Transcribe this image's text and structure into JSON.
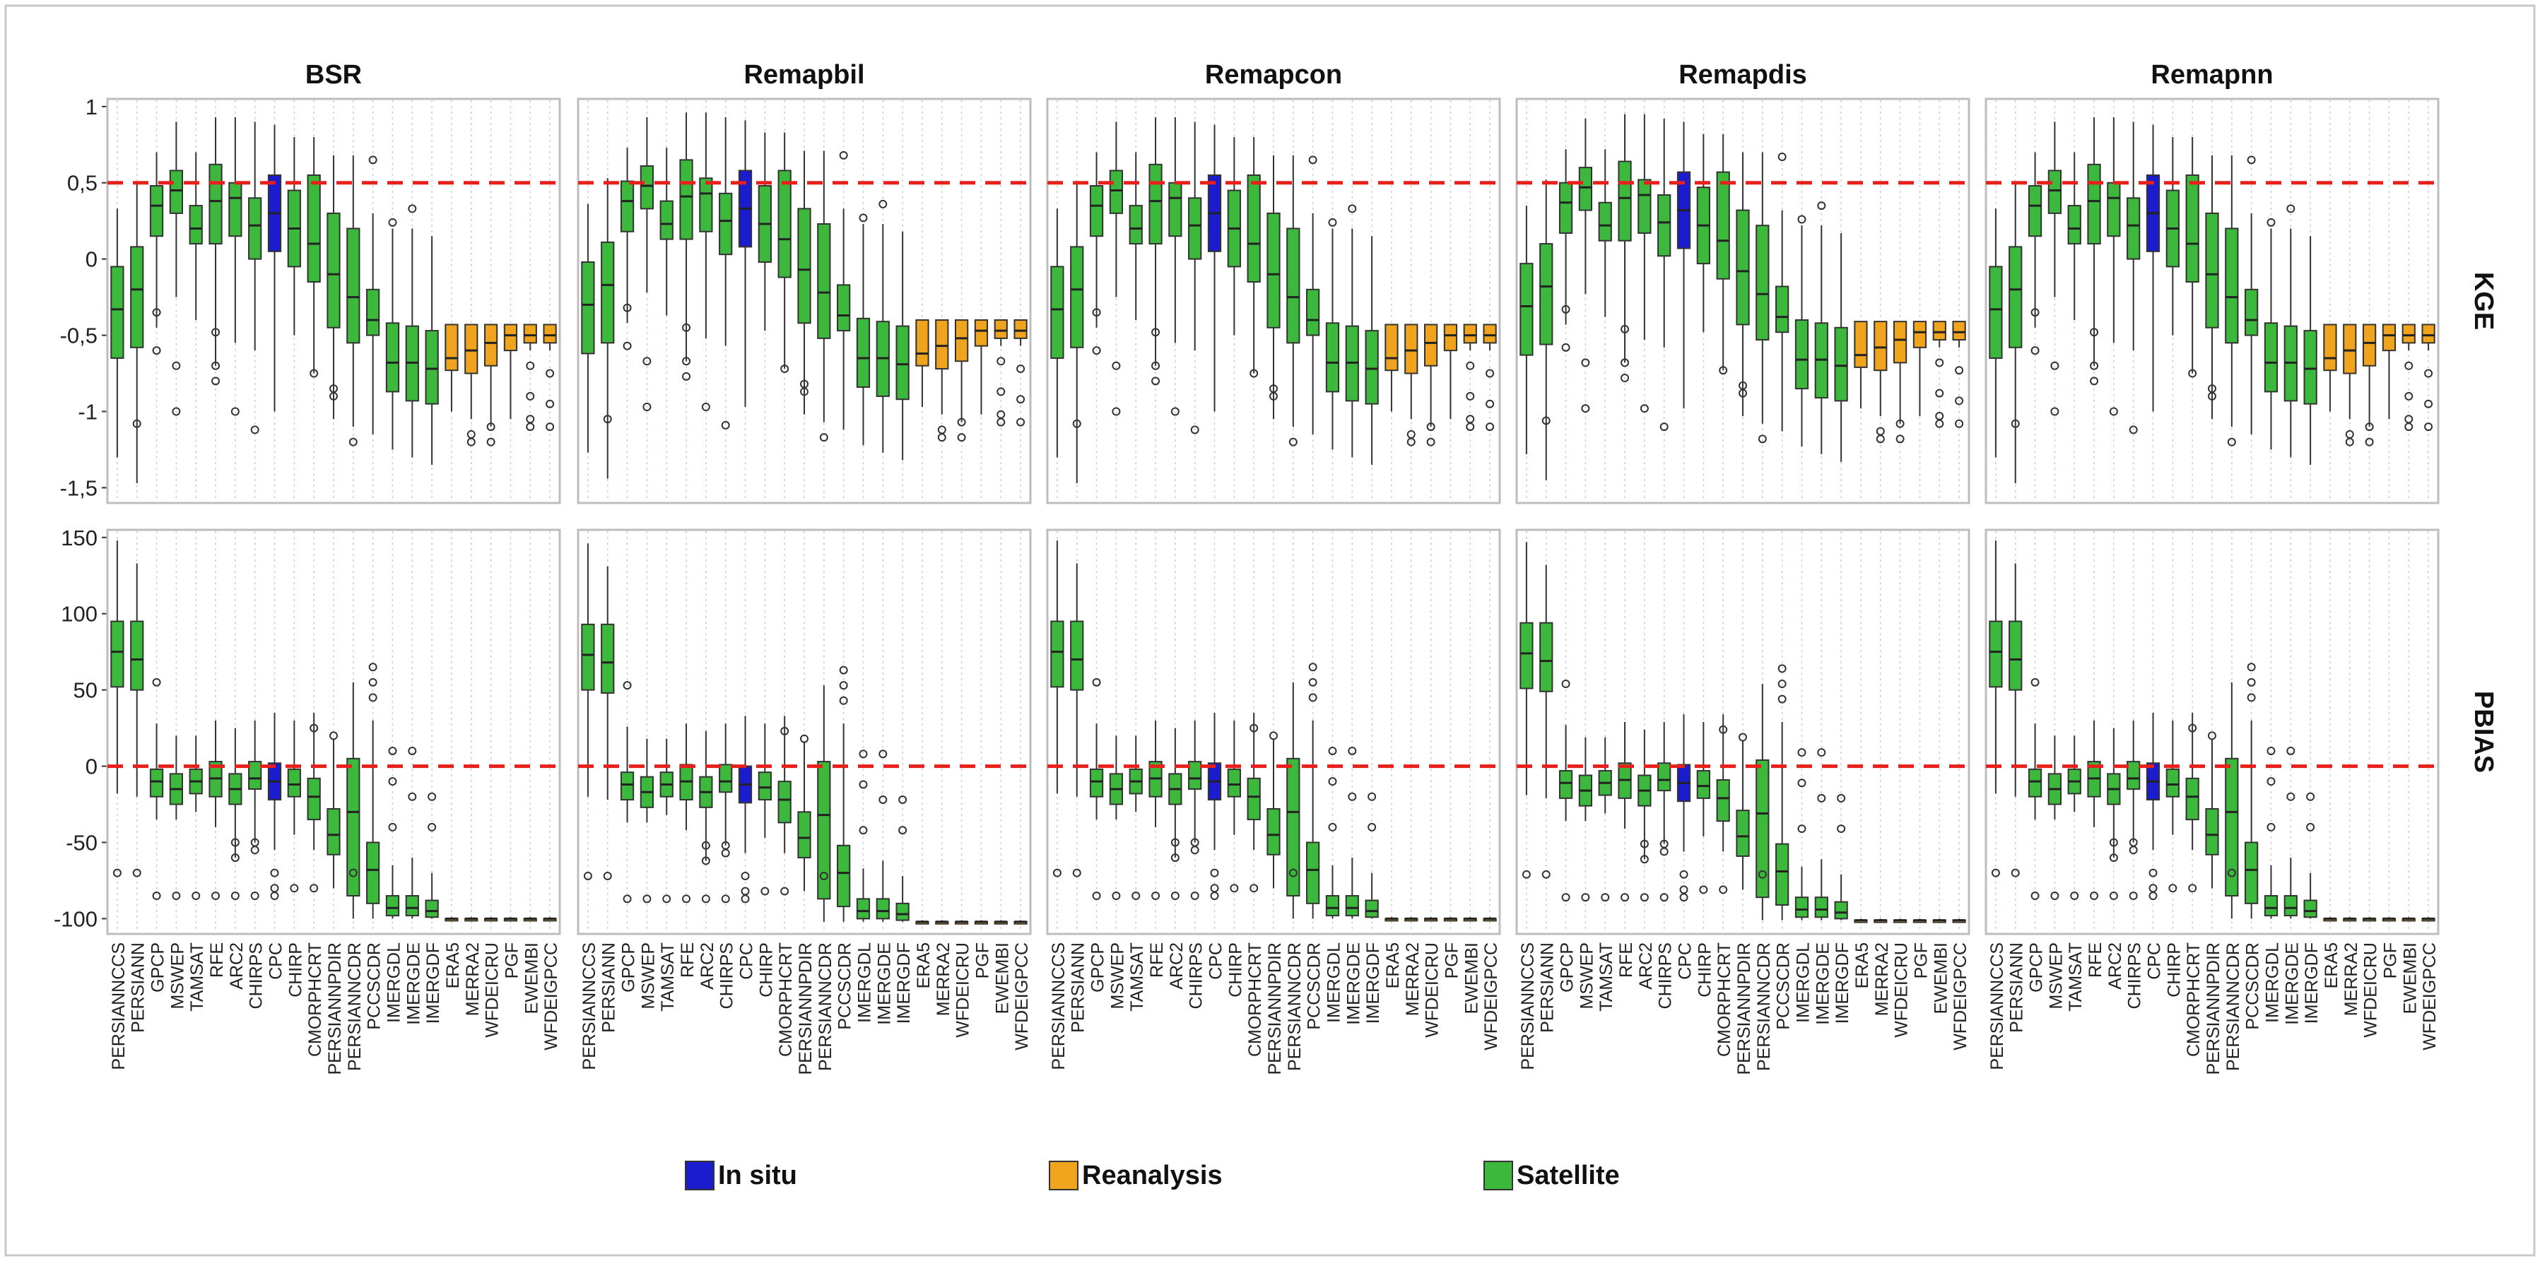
{
  "chart_data": {
    "type": "boxplot",
    "facet_columns": [
      "BSR",
      "Remapbil",
      "Remapcon",
      "Remapdis",
      "Remapnn"
    ],
    "facet_rows": [
      "KGE",
      "PBIAS"
    ],
    "categories": [
      "PERSIANNCCS",
      "PERSIANN",
      "GPCP",
      "MSWEP",
      "TAMSAT",
      "RFE",
      "ARC2",
      "CHIRPS",
      "CPC",
      "CHIRP",
      "CMORPHCRT",
      "PERSIANNPDIR",
      "PERSIANNCDR",
      "PCCSCDR",
      "IMERGDL",
      "IMERGDE",
      "IMERGDF",
      "ERA5",
      "MERRA2",
      "WFDEICRU",
      "PGF",
      "EWEMBI",
      "WFDEIGPCC"
    ],
    "category_groups": [
      "Satellite",
      "Satellite",
      "Satellite",
      "Satellite",
      "Satellite",
      "Satellite",
      "Satellite",
      "Satellite",
      "In situ",
      "Satellite",
      "Satellite",
      "Satellite",
      "Satellite",
      "Satellite",
      "Satellite",
      "Satellite",
      "Satellite",
      "Reanalysis",
      "Reanalysis",
      "Reanalysis",
      "Reanalysis",
      "Reanalysis",
      "Reanalysis"
    ],
    "group_colors": {
      "In situ": "#1c1ccf",
      "Reanalysis": "#f0a41e",
      "Satellite": "#3cb83c"
    },
    "reference_lines": {
      "KGE": 0.5,
      "PBIAS": 0
    },
    "reference_line_color": "#e8201c",
    "axes": {
      "KGE": {
        "ylim": [
          -1.6,
          1.05
        ],
        "ticks": [
          1,
          0.5,
          0,
          -0.5,
          -1,
          -1.5
        ],
        "tick_labels": [
          "1",
          "0,5",
          "0",
          "-0,5",
          "-1",
          "-1,5"
        ]
      },
      "PBIAS": {
        "ylim": [
          -110,
          155
        ],
        "ticks": [
          150,
          100,
          50,
          0,
          -50,
          -100
        ],
        "tick_labels": [
          "150",
          "100",
          "50",
          "0",
          "-50",
          "-100"
        ]
      }
    },
    "legend": {
      "position": "bottom",
      "items": [
        "In situ",
        "Reanalysis",
        "Satellite"
      ]
    },
    "series": {
      "KGE": [
        [
          -1.3,
          -0.65,
          -0.33,
          -0.05,
          0.33
        ],
        [
          -1.47,
          -0.58,
          -0.2,
          0.08,
          0.5
        ],
        [
          -0.45,
          0.15,
          0.35,
          0.48,
          0.7
        ],
        [
          -0.25,
          0.3,
          0.45,
          0.58,
          0.9
        ],
        [
          -0.4,
          0.1,
          0.2,
          0.35,
          0.7
        ],
        [
          -0.7,
          0.1,
          0.38,
          0.62,
          0.93
        ],
        [
          -0.55,
          0.15,
          0.4,
          0.5,
          0.93
        ],
        [
          -0.6,
          0.0,
          0.22,
          0.4,
          0.9
        ],
        [
          -1.0,
          0.05,
          0.3,
          0.55,
          0.88
        ],
        [
          -0.5,
          -0.05,
          0.2,
          0.45,
          0.8
        ],
        [
          -0.75,
          -0.15,
          0.1,
          0.55,
          0.8
        ],
        [
          -1.05,
          -0.45,
          -0.1,
          0.3,
          0.68
        ],
        [
          -1.1,
          -0.55,
          -0.25,
          0.2,
          0.68
        ],
        [
          -1.15,
          -0.5,
          -0.4,
          -0.2,
          0.3
        ],
        [
          -1.25,
          -0.87,
          -0.68,
          -0.42,
          0.2
        ],
        [
          -1.3,
          -0.93,
          -0.68,
          -0.44,
          0.2
        ],
        [
          -1.35,
          -0.95,
          -0.72,
          -0.47,
          0.15
        ],
        [
          -1.0,
          -0.73,
          -0.65,
          -0.43,
          -0.43
        ],
        [
          -1.05,
          -0.75,
          -0.6,
          -0.43,
          -0.43
        ],
        [
          -1.1,
          -0.7,
          -0.55,
          -0.43,
          -0.43
        ],
        [
          -1.05,
          -0.6,
          -0.5,
          -0.43,
          -0.43
        ],
        [
          -0.6,
          -0.55,
          -0.5,
          -0.43,
          -0.43
        ],
        [
          -0.6,
          -0.55,
          -0.5,
          -0.43,
          -0.43
        ]
      ],
      "PBIAS": [
        [
          -18,
          52,
          75,
          95,
          148
        ],
        [
          -20,
          50,
          70,
          95,
          133
        ],
        [
          -35,
          -20,
          -10,
          -2,
          28
        ],
        [
          -35,
          -25,
          -15,
          -5,
          20
        ],
        [
          -30,
          -18,
          -10,
          -2,
          20
        ],
        [
          -40,
          -20,
          -8,
          3,
          30
        ],
        [
          -60,
          -25,
          -15,
          -5,
          25
        ],
        [
          -50,
          -15,
          -8,
          3,
          30
        ],
        [
          -55,
          -22,
          -10,
          2,
          35
        ],
        [
          -45,
          -20,
          -12,
          -2,
          30
        ],
        [
          -55,
          -35,
          -20,
          -8,
          35
        ],
        [
          -80,
          -58,
          -45,
          -28,
          18
        ],
        [
          -100,
          -85,
          -30,
          5,
          55
        ],
        [
          -100,
          -90,
          -68,
          -50,
          30
        ],
        [
          -100,
          -98,
          -93,
          -85,
          -65
        ],
        [
          -100,
          -98,
          -93,
          -85,
          -60
        ],
        [
          -100,
          -99,
          -95,
          -88,
          -70
        ],
        [
          -100,
          -100,
          -100,
          -100,
          -99
        ],
        [
          -100,
          -100,
          -100,
          -100,
          -99
        ],
        [
          -100,
          -100,
          -100,
          -100,
          -99
        ],
        [
          -100,
          -100,
          -100,
          -100,
          -99
        ],
        [
          -100,
          -100,
          -100,
          -100,
          -99
        ],
        [
          -100,
          -100,
          -100,
          -100,
          -99
        ]
      ]
    },
    "facet_offsets": {
      "KGE": [
        0,
        0.03,
        0.0,
        0.02,
        0.0
      ],
      "PBIAS": [
        0,
        -2,
        0,
        -1,
        0
      ]
    },
    "outliers": {
      "KGE": [
        [
          2,
          -1.08
        ],
        [
          3,
          -0.6
        ],
        [
          3,
          -0.35
        ],
        [
          4,
          -1.0
        ],
        [
          4,
          -0.7
        ],
        [
          6,
          -0.8
        ],
        [
          6,
          -0.7
        ],
        [
          6,
          -0.48
        ],
        [
          7,
          -1.0
        ],
        [
          8,
          -1.12
        ],
        [
          11,
          -0.75
        ],
        [
          12,
          -0.85
        ],
        [
          12,
          -0.9
        ],
        [
          13,
          -1.2
        ],
        [
          14,
          0.65
        ],
        [
          15,
          0.24
        ],
        [
          16,
          0.33
        ],
        [
          19,
          -1.15
        ],
        [
          19,
          -1.2
        ],
        [
          20,
          -1.1
        ],
        [
          20,
          -1.2
        ],
        [
          22,
          -0.7
        ],
        [
          22,
          -0.9
        ],
        [
          22,
          -1.05
        ],
        [
          22,
          -1.1
        ],
        [
          23,
          -0.75
        ],
        [
          23,
          -0.95
        ],
        [
          23,
          -1.1
        ]
      ],
      "PBIAS": [
        [
          1,
          -70
        ],
        [
          2,
          -70
        ],
        [
          3,
          55
        ],
        [
          3,
          -85
        ],
        [
          4,
          -85
        ],
        [
          5,
          -85
        ],
        [
          6,
          -85
        ],
        [
          7,
          -50
        ],
        [
          7,
          -60
        ],
        [
          7,
          -85
        ],
        [
          8,
          -50
        ],
        [
          8,
          -55
        ],
        [
          8,
          -85
        ],
        [
          9,
          -70
        ],
        [
          9,
          -80
        ],
        [
          9,
          -85
        ],
        [
          10,
          -80
        ],
        [
          11,
          25
        ],
        [
          11,
          -80
        ],
        [
          12,
          20
        ],
        [
          13,
          -70
        ],
        [
          14,
          65
        ],
        [
          14,
          55
        ],
        [
          14,
          45
        ],
        [
          15,
          10
        ],
        [
          15,
          -10
        ],
        [
          15,
          -40
        ],
        [
          16,
          10
        ],
        [
          16,
          -20
        ],
        [
          17,
          -20
        ],
        [
          17,
          -40
        ]
      ]
    },
    "y_axis_title": "",
    "x_axis_title": ""
  }
}
